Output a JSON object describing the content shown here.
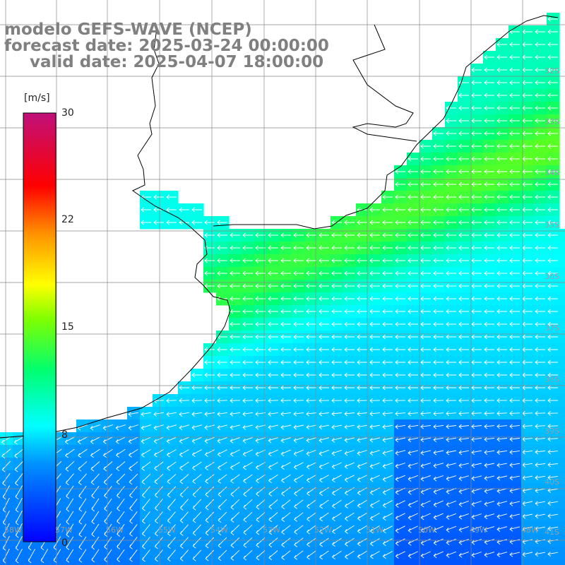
{
  "title": {
    "line1": "modelo GEFS-WAVE (NCEP)",
    "line2": "forecast date: 2025-03-24 00:00:00",
    "line3": "valid date: 2025-04-07 18:00:00"
  },
  "colorbar": {
    "unit": "[m/s]",
    "min": 0,
    "max": 30,
    "ticks": [
      "30",
      "22",
      "15",
      "8",
      "0"
    ]
  },
  "latitude_labels": [
    "32S",
    "33S",
    "34S",
    "35S",
    "36S",
    "37S",
    "38S",
    "39S",
    "40S",
    "41S"
  ],
  "longitude_labels": [
    "58W",
    "57W",
    "56W",
    "55W",
    "54W",
    "53W",
    "52W",
    "51W",
    "50W",
    "49W",
    "48W"
  ],
  "chart_data": {
    "type": "heatmap",
    "variable": "wind speed with direction vectors",
    "unit": "m/s",
    "value_range": [
      0,
      30
    ],
    "prevailing_direction": "from east / north-east (vectors pointing west and south-west)",
    "speed_summary": {
      "northeast_coastal_band": "about 12-14",
      "central_open_ocean": "about 8-10",
      "southwest_and_south": "about 4-7"
    }
  }
}
